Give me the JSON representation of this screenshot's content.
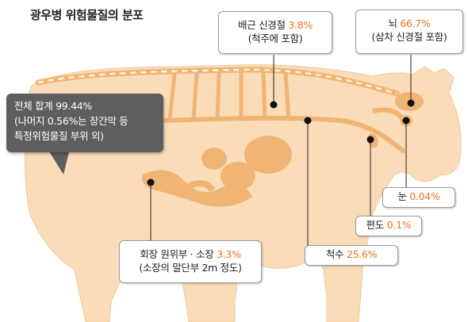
{
  "title": "광우병 위험물질의 분포",
  "total": {
    "line1": "전체 합계 99.44%",
    "line2": "(나머지 0.56%는 장간막 등",
    "line3": "특정위험물질 부위 외)"
  },
  "callouts": {
    "spinal_ganglia": {
      "label": "배근 신경절",
      "percent": "3.8%",
      "sub": "(척주에 포함)"
    },
    "brain": {
      "label": "뇌",
      "percent": "66.7%",
      "sub": "(삼차 신경절 포함)"
    },
    "eye": {
      "label": "눈",
      "percent": "0.04%"
    },
    "tonsil": {
      "label": "편도",
      "percent": "0.1%"
    },
    "spinal_cord": {
      "label": "척수",
      "percent": "25.6%"
    },
    "intestine": {
      "label": "회장 원위부 · 소장",
      "percent": "3.3%",
      "sub": "(소장의 말단부 2m 정도)"
    }
  },
  "colors": {
    "body_fill": "#fbdcb8",
    "organ_fill": "#f0b574",
    "accent": "#e8731b",
    "total_box": "#5e5e5e"
  }
}
